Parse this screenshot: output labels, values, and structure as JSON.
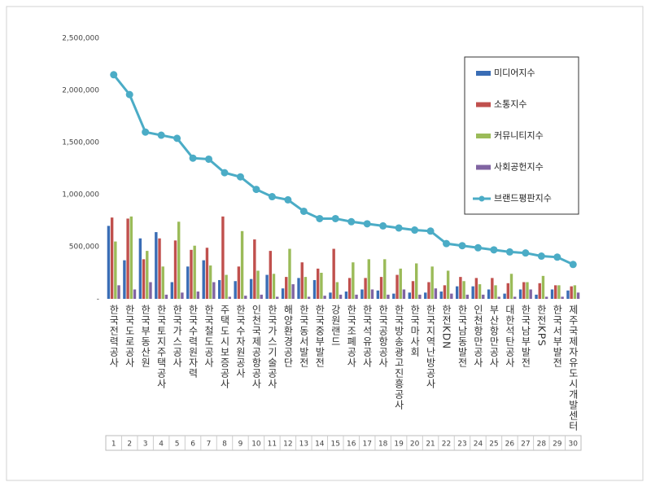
{
  "chart_data": {
    "type": "bar",
    "categories": [
      "한국전력공사",
      "한국도로공사",
      "한국부동산원",
      "한국토지주택공사",
      "한국가스공사",
      "한국수력원자력",
      "한국철도공사",
      "주택도시보증공사",
      "한국수자원공사",
      "인천국제공항공사",
      "한국가스기술공사",
      "해양환경공단",
      "한국동서발전",
      "한국중부발전",
      "강원랜드",
      "한국조폐공사",
      "한국석유공사",
      "한국공항공사",
      "한국방송광고진흥공사",
      "한국마사회",
      "한국지역난방공사",
      "한전KDN",
      "한국남동발전",
      "인천항만공사",
      "부산항만공사",
      "대한석탄공사",
      "한국남부발전",
      "한전KPS",
      "한국서부발전",
      "제주국제자유도시개발센터"
    ],
    "ranks": [
      1,
      2,
      3,
      4,
      5,
      6,
      7,
      8,
      9,
      10,
      11,
      12,
      13,
      14,
      15,
      16,
      17,
      18,
      19,
      20,
      21,
      22,
      23,
      24,
      25,
      26,
      27,
      28,
      29,
      30
    ],
    "series": [
      {
        "name": "미디어지수",
        "color": "#3a6db5",
        "type": "bar",
        "values": [
          700000,
          370000,
          580000,
          640000,
          160000,
          310000,
          370000,
          180000,
          170000,
          190000,
          230000,
          100000,
          200000,
          180000,
          60000,
          70000,
          90000,
          80000,
          50000,
          60000,
          60000,
          70000,
          120000,
          120000,
          90000,
          50000,
          90000,
          40000,
          90000,
          80000
        ]
      },
      {
        "name": "소통지수",
        "color": "#c0504d",
        "type": "bar",
        "values": [
          780000,
          770000,
          380000,
          580000,
          560000,
          470000,
          490000,
          790000,
          310000,
          570000,
          460000,
          210000,
          350000,
          290000,
          480000,
          200000,
          200000,
          210000,
          230000,
          170000,
          160000,
          130000,
          210000,
          200000,
          200000,
          150000,
          160000,
          150000,
          130000,
          120000
        ]
      },
      {
        "name": "커뮤니티지수",
        "color": "#9bbb59",
        "type": "bar",
        "values": [
          550000,
          790000,
          460000,
          310000,
          740000,
          510000,
          320000,
          230000,
          650000,
          270000,
          240000,
          480000,
          210000,
          250000,
          160000,
          350000,
          380000,
          380000,
          290000,
          340000,
          310000,
          270000,
          170000,
          140000,
          130000,
          240000,
          160000,
          220000,
          130000,
          130000
        ]
      },
      {
        "name": "사회공헌지수",
        "color": "#8064a2",
        "type": "bar",
        "values": [
          130000,
          90000,
          160000,
          40000,
          60000,
          70000,
          160000,
          20000,
          30000,
          40000,
          20000,
          140000,
          20000,
          30000,
          40000,
          40000,
          90000,
          40000,
          90000,
          40000,
          100000,
          50000,
          40000,
          40000,
          20000,
          20000,
          90000,
          20000,
          20000,
          60000
        ]
      },
      {
        "name": "브랜드평판지수",
        "color": "#4bacc6",
        "type": "line",
        "values": [
          2150000,
          1960000,
          1600000,
          1570000,
          1540000,
          1350000,
          1340000,
          1210000,
          1170000,
          1050000,
          980000,
          950000,
          840000,
          770000,
          770000,
          740000,
          720000,
          700000,
          680000,
          660000,
          650000,
          530000,
          510000,
          490000,
          470000,
          450000,
          440000,
          410000,
          400000,
          330000
        ]
      }
    ],
    "ylim": [
      0,
      2500000
    ],
    "yticks": [
      {
        "value": 0,
        "label": "-"
      },
      {
        "value": 500000,
        "label": "500,000"
      },
      {
        "value": 1000000,
        "label": "1,000,000"
      },
      {
        "value": 1500000,
        "label": "1,500,000"
      },
      {
        "value": 2000000,
        "label": "2,000,000"
      },
      {
        "value": 2500000,
        "label": "2,500,000"
      }
    ],
    "grid": false
  }
}
